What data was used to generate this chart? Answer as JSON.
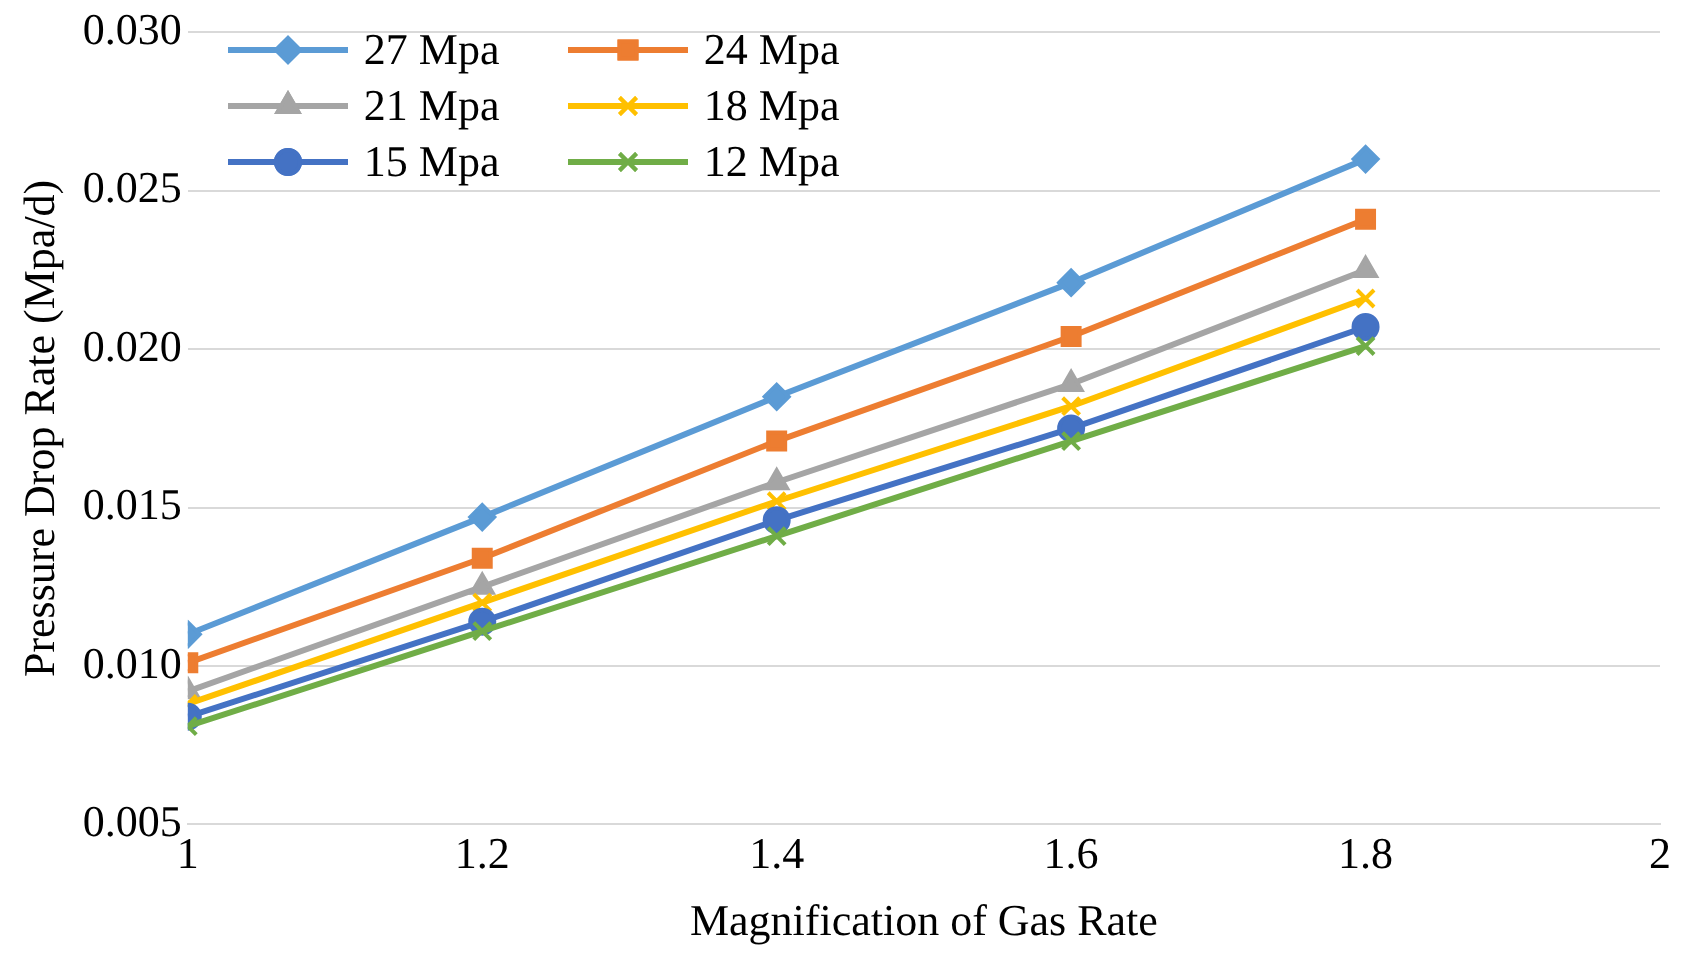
{
  "chart_data": {
    "type": "line",
    "xlabel": "Magnification of Gas Rate",
    "ylabel": "Pressure Drop Rate (Mpa/d)",
    "x": [
      1,
      1.2,
      1.4,
      1.6,
      1.8
    ],
    "xlim": [
      1,
      2
    ],
    "xticks": [
      1,
      1.2,
      1.4,
      1.6,
      1.8,
      2
    ],
    "ylim": [
      0.005,
      0.03
    ],
    "yticks": [
      {
        "value": 0.005,
        "label": "0.005"
      },
      {
        "value": 0.01,
        "label": "0.010"
      },
      {
        "value": 0.015,
        "label": "0.015"
      },
      {
        "value": 0.02,
        "label": "0.020"
      },
      {
        "value": 0.025,
        "label": "0.025"
      },
      {
        "value": 0.03,
        "label": "0.030"
      }
    ],
    "grid": "y",
    "legend": "top left",
    "line_style": "solid",
    "series": [
      {
        "name": "27 Mpa",
        "color": "#5b9bd5",
        "marker": "diamond",
        "values": [
          0.011,
          0.0147,
          0.0185,
          0.0221,
          0.026
        ]
      },
      {
        "name": "24 Mpa",
        "color": "#ed7d31",
        "marker": "square",
        "values": [
          0.0101,
          0.0134,
          0.0171,
          0.0204,
          0.0241
        ]
      },
      {
        "name": "21 Mpa",
        "color": "#a5a5a5",
        "marker": "triangle",
        "values": [
          0.0092,
          0.0125,
          0.0158,
          0.0189,
          0.0225
        ]
      },
      {
        "name": "18 Mpa",
        "color": "#ffc000",
        "marker": "cross",
        "values": [
          0.0088,
          0.012,
          0.0152,
          0.0182,
          0.0216
        ]
      },
      {
        "name": "15 Mpa",
        "color": "#4472c4",
        "marker": "circle",
        "values": [
          0.0084,
          0.0114,
          0.0146,
          0.0175,
          0.0207
        ]
      },
      {
        "name": "12 Mpa",
        "color": "#70ad47",
        "marker": "cross",
        "values": [
          0.0081,
          0.0111,
          0.0141,
          0.0171,
          0.0201
        ]
      }
    ]
  }
}
